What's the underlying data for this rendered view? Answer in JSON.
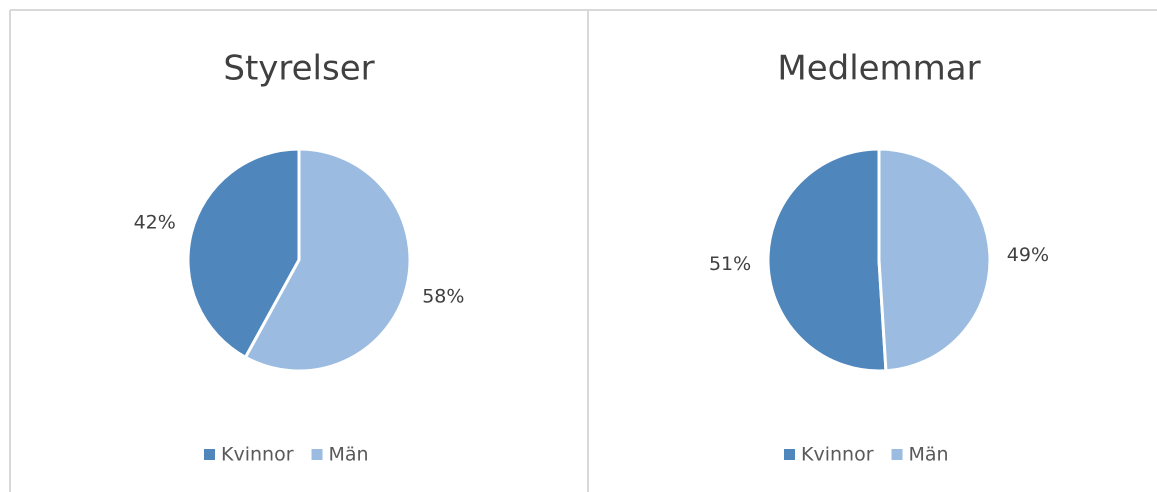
{
  "chart_data": [
    {
      "type": "pie",
      "title": "Styrelser",
      "categories": [
        "Kvinnor",
        "Män"
      ],
      "values": [
        42,
        58
      ],
      "value_labels": [
        "42%",
        "58%"
      ],
      "colors": [
        "#4f86bc",
        "#9bbbe0"
      ],
      "legend": "bottom"
    },
    {
      "type": "pie",
      "title": "Medlemmar",
      "categories": [
        "Kvinnor",
        "Män"
      ],
      "values": [
        51,
        49
      ],
      "value_labels": [
        "51%",
        "49%"
      ],
      "colors": [
        "#4f86bc",
        "#9bbbe0"
      ],
      "legend": "bottom"
    }
  ]
}
